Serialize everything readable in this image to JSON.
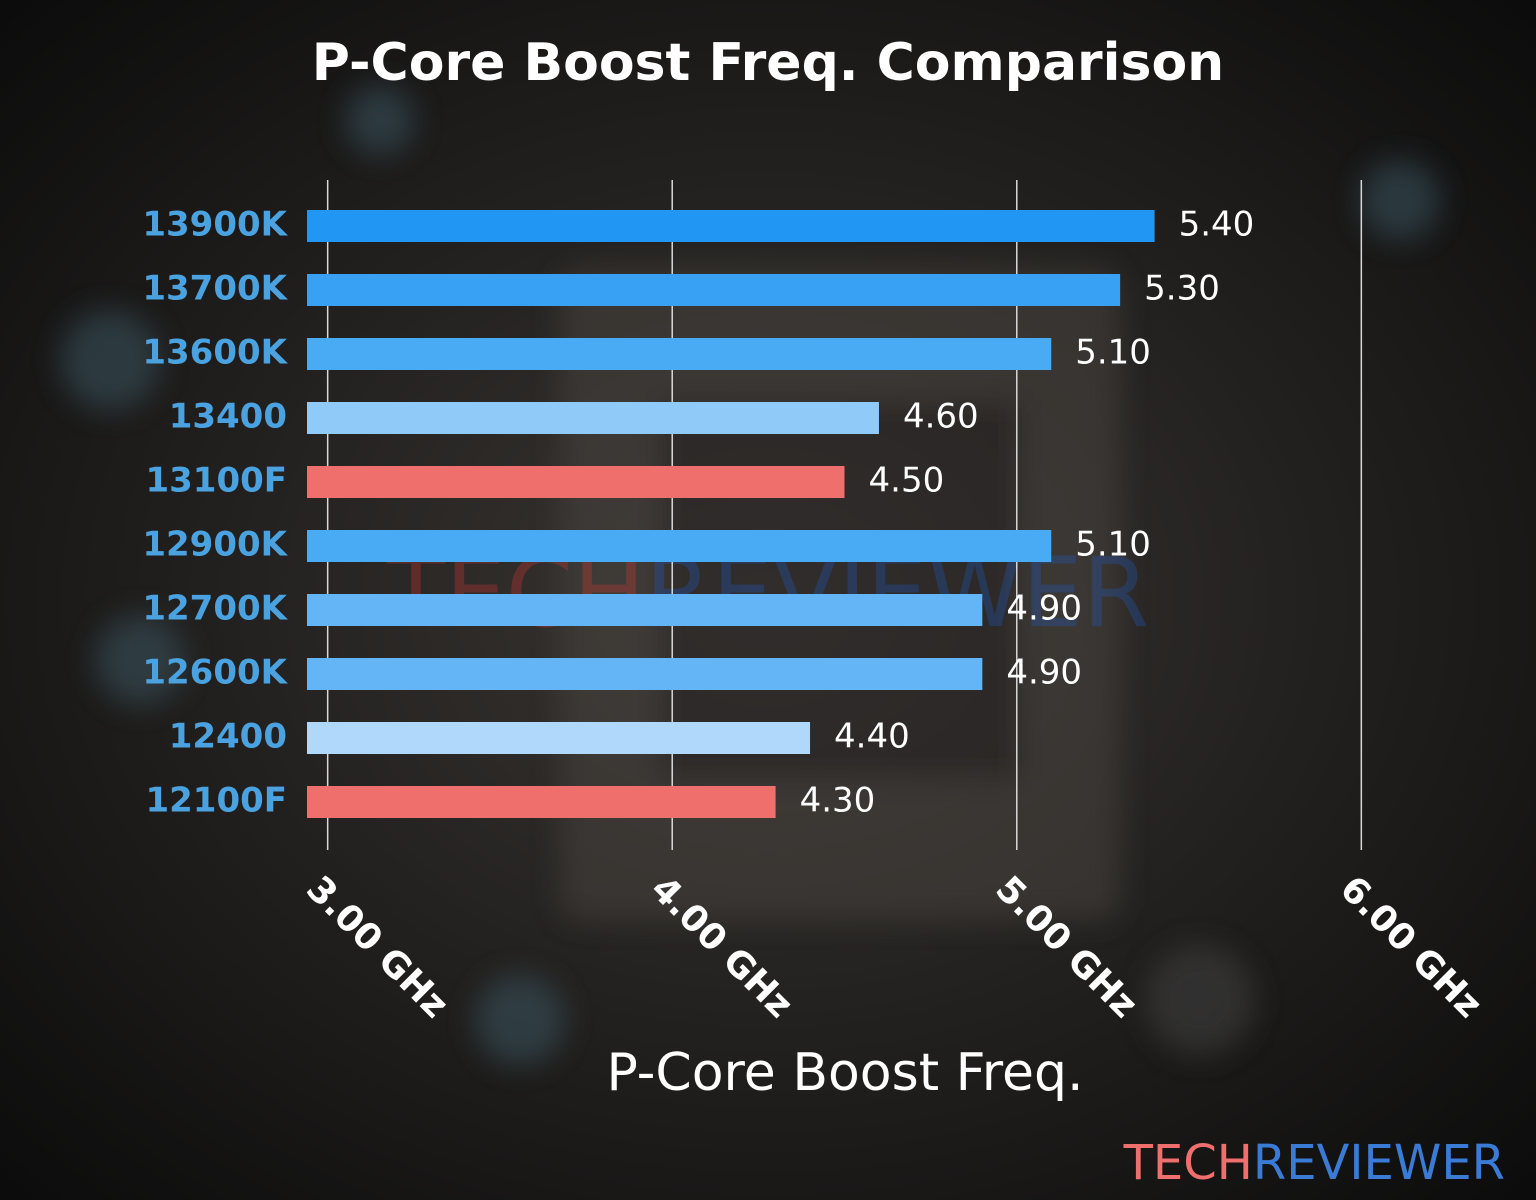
{
  "chart_data": {
    "type": "barh",
    "title": "P-Core Boost Freq. Comparison",
    "xlabel": "P-Core Boost Freq.",
    "categories": [
      "13900K",
      "13700K",
      "13600K",
      "13400",
      "13100F",
      "12900K",
      "12700K",
      "12600K",
      "12400",
      "12100F"
    ],
    "values": [
      5.4,
      5.3,
      5.1,
      4.6,
      4.5,
      5.1,
      4.9,
      4.9,
      4.4,
      4.3
    ],
    "value_labels": [
      "5.40",
      "5.30",
      "5.10",
      "4.60",
      "4.50",
      "5.10",
      "4.90",
      "4.90",
      "4.40",
      "4.30"
    ],
    "colors": [
      "#2196f3",
      "#38a1f4",
      "#4aabf5",
      "#90caf9",
      "#ef6f6c",
      "#4aabf5",
      "#64b5f6",
      "#64b5f6",
      "#b0d8fb",
      "#ef6f6c"
    ],
    "xlim": [
      2.94,
      6.06
    ],
    "xticks": [
      {
        "value": 3,
        "label": "3.00 GHz"
      },
      {
        "value": 4,
        "label": "4.00 GHz"
      },
      {
        "value": 5,
        "label": "5.00 GHz"
      },
      {
        "value": 6,
        "label": "6.00 GHz"
      }
    ],
    "grid": true,
    "watermark": [
      "TECH",
      "REVIEWER"
    ]
  }
}
